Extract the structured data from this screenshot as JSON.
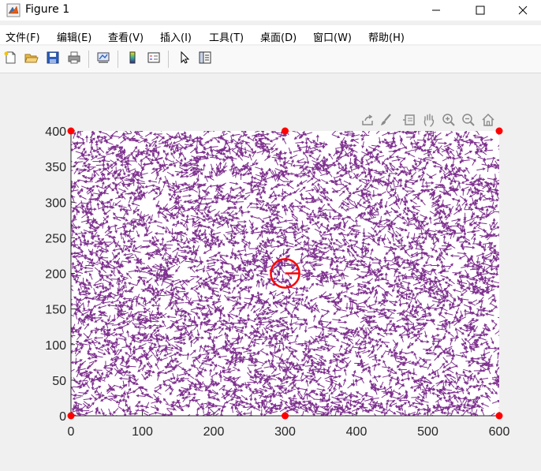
{
  "window": {
    "title": "Figure 1",
    "minimize_glyph": "—",
    "maximize_glyph": "☐",
    "close_glyph": "✕"
  },
  "menu": [
    {
      "label": "文件(F)"
    },
    {
      "label": "编辑(E)"
    },
    {
      "label": "查看(V)"
    },
    {
      "label": "插入(I)"
    },
    {
      "label": "工具(T)"
    },
    {
      "label": "桌面(D)"
    },
    {
      "label": "窗口(W)"
    },
    {
      "label": "帮助(H)"
    }
  ],
  "toolbar": [
    "new-figure-icon",
    "open-file-icon",
    "save-icon",
    "print-icon",
    "link-plot-icon",
    "insert-colorbar-icon",
    "insert-legend-icon",
    "edit-plot-icon",
    "property-inspector-icon"
  ],
  "axes_toolbar": [
    "export-icon",
    "brush-icon",
    "data-tips-icon",
    "pan-icon",
    "zoom-in-icon",
    "zoom-out-icon",
    "home-icon"
  ],
  "chart_data": {
    "type": "quiver",
    "title": "",
    "xlabel": "",
    "ylabel": "",
    "xlim": [
      0,
      600
    ],
    "ylim": [
      0,
      400
    ],
    "xticks": [
      0,
      100,
      200,
      300,
      400,
      500,
      600
    ],
    "yticks": [
      0,
      50,
      100,
      150,
      200,
      250,
      300,
      350,
      400
    ],
    "grid": false,
    "arrow_color": "#7e2f8e",
    "marker_color": "#ff0000",
    "corner_markers": [
      [
        0,
        0
      ],
      [
        300,
        0
      ],
      [
        600,
        0
      ],
      [
        0,
        400
      ],
      [
        300,
        400
      ],
      [
        600,
        400
      ]
    ],
    "circle": {
      "center": [
        300,
        200
      ],
      "radius_units": 20,
      "color": "#ff0000",
      "pointer_direction": "right"
    },
    "field": {
      "description": "random unit-direction arrows densely covering the domain",
      "approx_count": 5000,
      "arrow_length_units": 12
    }
  }
}
